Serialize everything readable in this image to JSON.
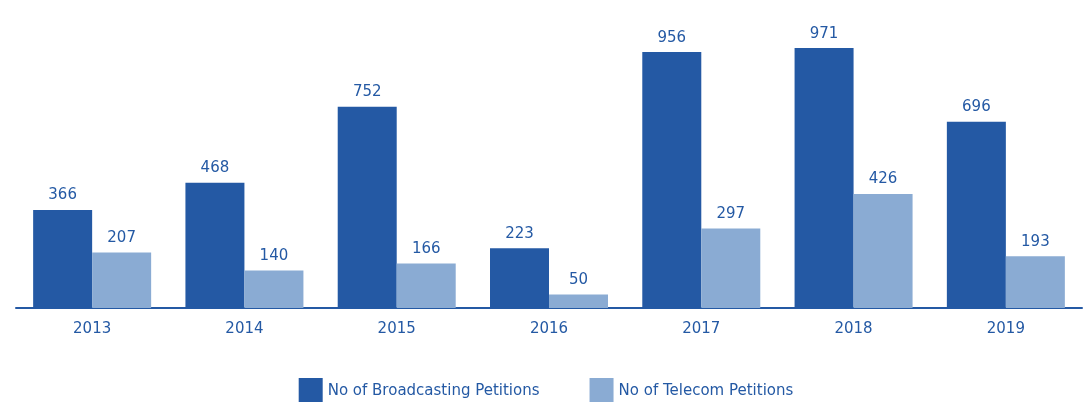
{
  "chart_data": {
    "type": "bar",
    "categories": [
      "2013",
      "2014",
      "2015",
      "2016",
      "2017",
      "2018",
      "2019"
    ],
    "series": [
      {
        "name": "No of Broadcasting Petitions",
        "color": "#2459a4",
        "values": [
          366,
          468,
          752,
          223,
          956,
          971,
          696
        ]
      },
      {
        "name": "No of Telecom Petitions",
        "color": "#8aabd3",
        "values": [
          207,
          140,
          166,
          50,
          297,
          426,
          193
        ]
      }
    ],
    "data_labels": true,
    "legend": "bottom"
  }
}
